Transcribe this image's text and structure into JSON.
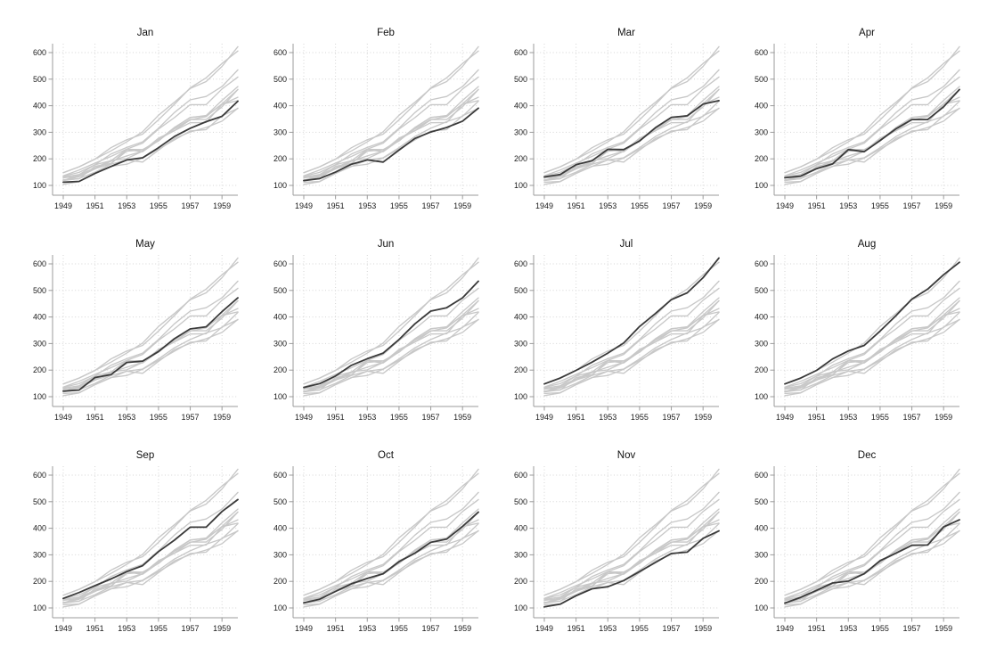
{
  "chart_data": {
    "type": "line",
    "layout": "small-multiples",
    "grid_shape": {
      "rows": 3,
      "cols": 4
    },
    "panels": [
      "Jan",
      "Feb",
      "Mar",
      "Apr",
      "May",
      "Jun",
      "Jul",
      "Aug",
      "Sep",
      "Oct",
      "Nov",
      "Dec"
    ],
    "x": [
      1949,
      1950,
      1951,
      1952,
      1953,
      1954,
      1955,
      1956,
      1957,
      1958,
      1959,
      1960
    ],
    "xticks": [
      1949,
      1951,
      1953,
      1955,
      1957,
      1959
    ],
    "yticks": [
      100,
      200,
      300,
      400,
      500,
      600
    ],
    "ylim": [
      60,
      640
    ],
    "gridlines": "dotted",
    "legend_position": "none",
    "xlabel": "",
    "ylabel": "",
    "series": [
      {
        "name": "Jan",
        "values": [
          112,
          115,
          145,
          171,
          196,
          204,
          242,
          284,
          315,
          340,
          360,
          417
        ]
      },
      {
        "name": "Feb",
        "values": [
          118,
          126,
          150,
          180,
          196,
          188,
          233,
          277,
          301,
          318,
          342,
          391
        ]
      },
      {
        "name": "Mar",
        "values": [
          132,
          141,
          178,
          193,
          236,
          235,
          267,
          317,
          356,
          362,
          406,
          419
        ]
      },
      {
        "name": "Apr",
        "values": [
          129,
          135,
          163,
          181,
          235,
          227,
          269,
          313,
          348,
          348,
          396,
          461
        ]
      },
      {
        "name": "May",
        "values": [
          121,
          125,
          172,
          183,
          229,
          234,
          270,
          318,
          355,
          363,
          420,
          472
        ]
      },
      {
        "name": "Jun",
        "values": [
          135,
          149,
          178,
          218,
          243,
          264,
          315,
          374,
          422,
          435,
          472,
          535
        ]
      },
      {
        "name": "Jul",
        "values": [
          148,
          170,
          199,
          230,
          264,
          302,
          364,
          413,
          465,
          491,
          548,
          622
        ]
      },
      {
        "name": "Aug",
        "values": [
          148,
          170,
          199,
          242,
          272,
          293,
          347,
          405,
          467,
          505,
          559,
          606
        ]
      },
      {
        "name": "Sep",
        "values": [
          136,
          158,
          184,
          209,
          237,
          259,
          312,
          355,
          404,
          404,
          463,
          508
        ]
      },
      {
        "name": "Oct",
        "values": [
          119,
          133,
          162,
          191,
          211,
          229,
          274,
          306,
          347,
          359,
          407,
          461
        ]
      },
      {
        "name": "Nov",
        "values": [
          104,
          114,
          146,
          172,
          180,
          203,
          237,
          271,
          305,
          310,
          362,
          390
        ]
      },
      {
        "name": "Dec",
        "values": [
          118,
          140,
          166,
          194,
          201,
          229,
          278,
          306,
          336,
          337,
          405,
          432
        ]
      }
    ],
    "colors": {
      "highlight_line": "#3a3a3a",
      "context_line": "#c8c8c8",
      "gridline": "#d5d5d5",
      "axis": "#9b9b9b",
      "text": "#1b1b1b",
      "background": "#ffffff"
    }
  }
}
